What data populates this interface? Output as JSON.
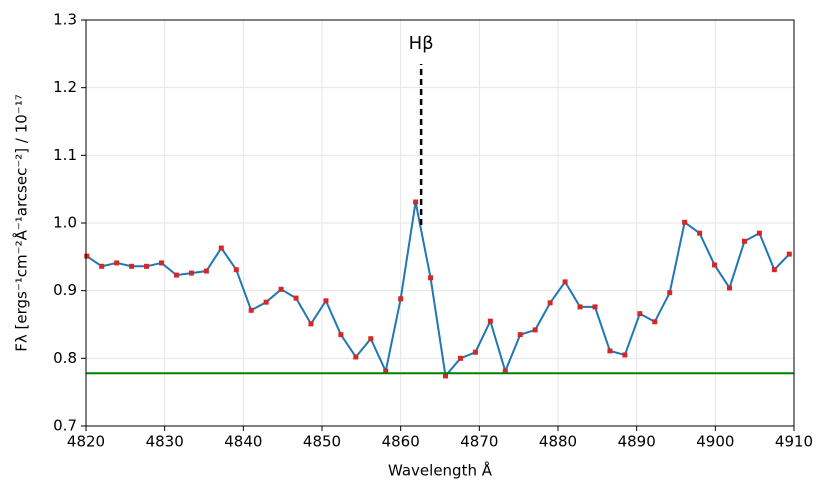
{
  "chart_data": {
    "type": "line",
    "xlabel": "Wavelength Å",
    "ylabel": "Fλ [ergs⁻¹cm⁻²Å⁻¹arcsec⁻²] / 10⁻¹⁷",
    "xlim": [
      4820,
      4910
    ],
    "ylim": [
      0.7,
      1.3
    ],
    "xticks": [
      4820,
      4830,
      4840,
      4850,
      4860,
      4870,
      4880,
      4890,
      4900,
      4910
    ],
    "yticks": [
      0.7,
      0.8,
      0.9,
      {
        "value": 1,
        "label": "1.0"
      },
      1.1,
      1.2,
      1.3
    ],
    "grid": true,
    "x": [
      4820.1,
      4822.0,
      4823.9,
      4825.8,
      4827.7,
      4829.6,
      4831.5,
      4833.4,
      4835.3,
      4837.2,
      4839.1,
      4841.0,
      4842.9,
      4844.8,
      4846.7,
      4848.6,
      4850.5,
      4852.4,
      4854.3,
      4856.2,
      4858.1,
      4860.0,
      4861.9,
      4863.8,
      4865.7,
      4867.6,
      4869.5,
      4871.4,
      4873.3,
      4875.2,
      4877.1,
      4879.0,
      4880.9,
      4882.8,
      4884.7,
      4886.6,
      4888.5,
      4890.4,
      4892.3,
      4894.2,
      4896.1,
      4898.0,
      4899.9,
      4901.8,
      4903.7,
      4905.6,
      4907.5,
      4909.4
    ],
    "series": [
      {
        "color": "#1f77b4",
        "marker_color": "#d62728",
        "values": [
          0.951,
          0.936,
          0.941,
          0.936,
          0.936,
          0.941,
          0.923,
          0.926,
          0.929,
          0.963,
          0.931,
          0.871,
          0.883,
          0.902,
          0.889,
          0.851,
          0.885,
          0.835,
          0.802,
          0.829,
          0.781,
          0.888,
          1.031,
          0.919,
          0.774,
          0.8,
          0.809,
          0.855,
          0.781,
          0.835,
          0.842,
          0.882,
          0.913,
          0.876,
          0.876,
          0.811,
          0.805,
          0.866,
          0.854,
          0.897,
          1.001,
          0.985,
          0.938,
          0.904,
          0.973,
          0.985,
          0.931,
          0.954
        ]
      }
    ],
    "hline": {
      "value": 0.778,
      "color": "#008000"
    },
    "annotation": {
      "text": "Hβ",
      "x": 4862.6,
      "y_range": [
        0.997,
        1.235
      ]
    }
  }
}
